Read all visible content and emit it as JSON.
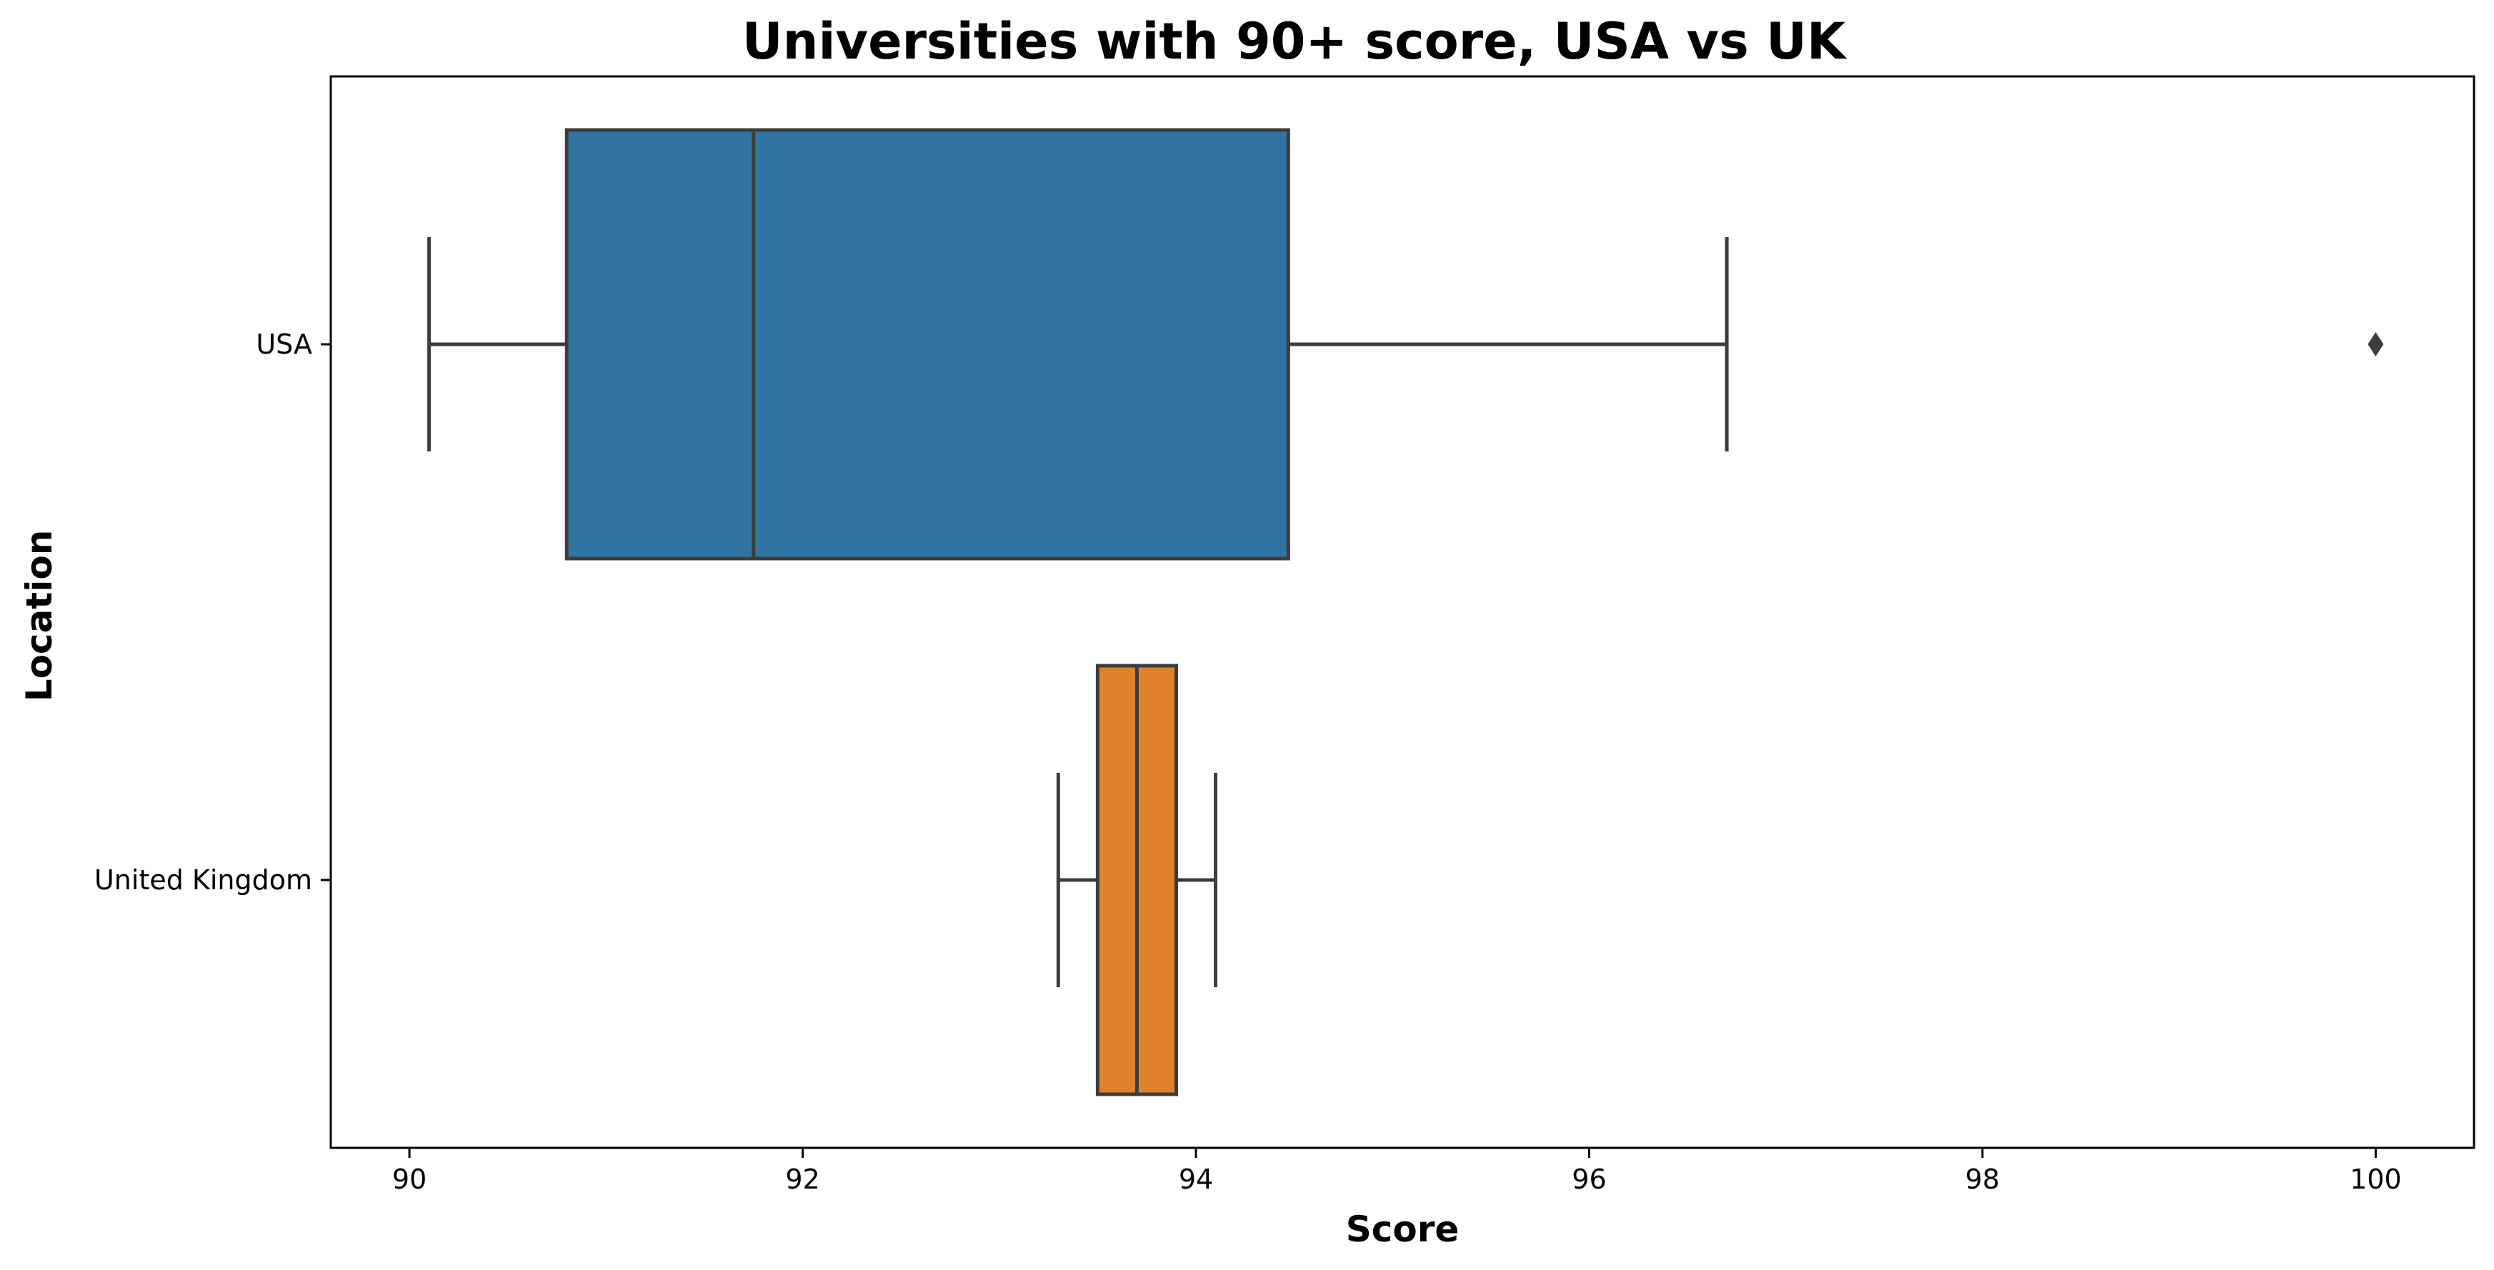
{
  "chart_data": {
    "type": "box",
    "title": "Universities with 90+ score, USA vs UK",
    "xlabel": "Score",
    "ylabel": "Location",
    "xlim": [
      89.6,
      100.5
    ],
    "x_ticks": [
      "90",
      "92",
      "94",
      "96",
      "98",
      "100"
    ],
    "x_tick_values": [
      90,
      92,
      94,
      96,
      98,
      100
    ],
    "categories": [
      "USA",
      "United Kingdom"
    ],
    "series": [
      {
        "category": "USA",
        "whisker_low": 90.1,
        "q1": 90.8,
        "median": 91.75,
        "q3": 94.47,
        "whisker_high": 96.7,
        "outliers": [
          100.0
        ],
        "color": "#3274a1"
      },
      {
        "category": "United Kingdom",
        "whisker_low": 93.3,
        "q1": 93.5,
        "median": 93.7,
        "q3": 93.9,
        "whisker_high": 94.1,
        "outliers": [],
        "color": "#e1812c"
      }
    ],
    "grid": false,
    "line_color": "#3d3d3d"
  }
}
